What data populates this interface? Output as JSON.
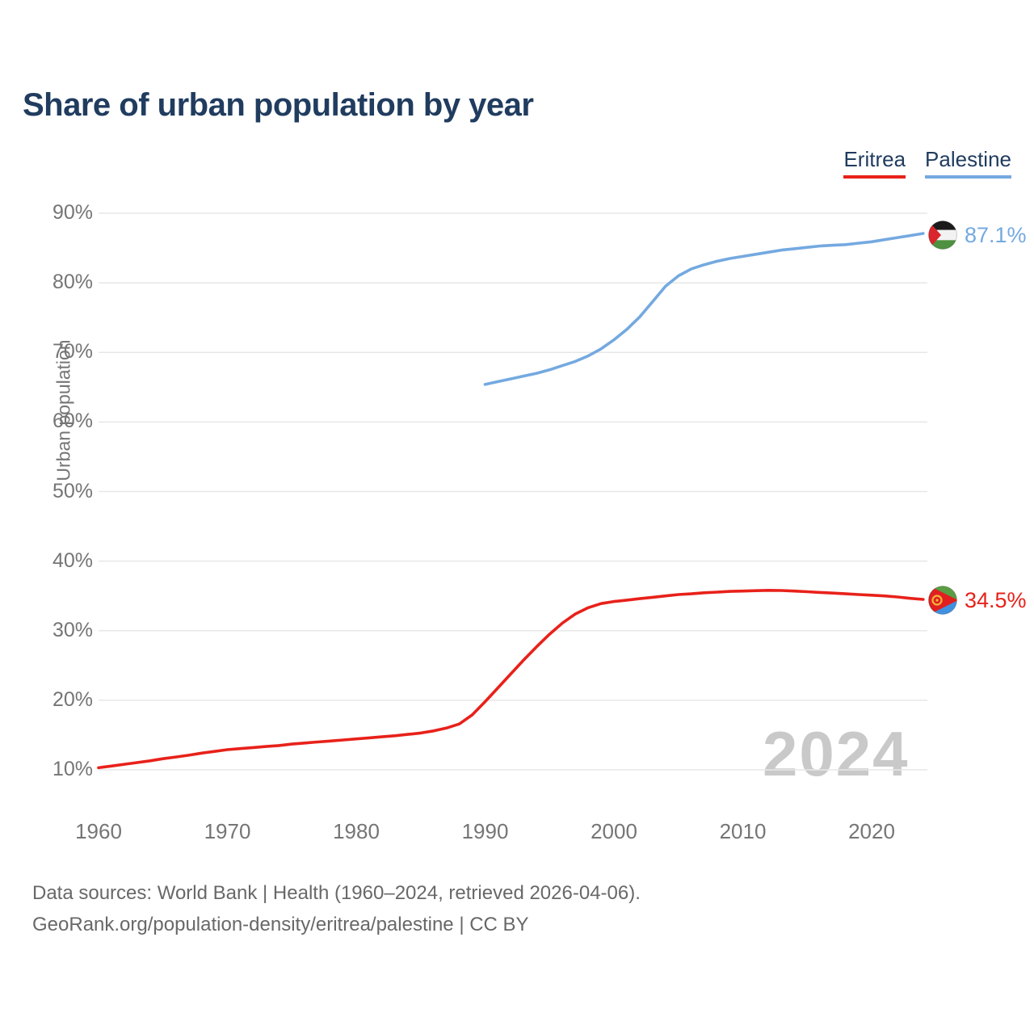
{
  "header": {
    "title": "Share of urban population by year"
  },
  "legend": {
    "items": [
      {
        "label": "Eritrea",
        "color": "#e8211a"
      },
      {
        "label": "Palestine",
        "color": "#74a9e0"
      }
    ]
  },
  "colors": {
    "navy": "#203c5f",
    "tick_gray": "#757575",
    "footer_gray": "#686868",
    "gridline": "#e7e7e7",
    "watermark_gray": "#c9c9c9",
    "eritrea_red": "#e8211a",
    "palestine_blue": "#74a9e0"
  },
  "chart_data": {
    "type": "line",
    "title": "Share of urban population by year",
    "xlabel": "",
    "ylabel": "Urban population",
    "x_range": [
      1960,
      2024
    ],
    "y_range": [
      10,
      90
    ],
    "x_ticks": [
      1960,
      1970,
      1980,
      1990,
      2000,
      2010,
      2020
    ],
    "y_ticks": [
      10,
      20,
      30,
      40,
      50,
      60,
      70,
      80,
      90
    ],
    "y_tick_suffix": "%",
    "grid": "horizontal-only",
    "legend_position": "top-right",
    "watermark": "2024",
    "series": [
      {
        "name": "Eritrea",
        "color": "#e8211a",
        "start_year": 1960,
        "end_year": 2024,
        "end_label": "34.5%",
        "end_value": 34.5,
        "flag": "eritrea",
        "values": [
          10.3,
          10.55,
          10.8,
          11.05,
          11.3,
          11.6,
          11.85,
          12.1,
          12.4,
          12.65,
          12.9,
          13.05,
          13.2,
          13.35,
          13.5,
          13.7,
          13.85,
          14.0,
          14.15,
          14.3,
          14.45,
          14.6,
          14.75,
          14.9,
          15.1,
          15.3,
          15.6,
          16.0,
          16.6,
          17.9,
          19.8,
          21.8,
          23.8,
          25.8,
          27.7,
          29.5,
          31.1,
          32.4,
          33.3,
          33.9,
          34.2,
          34.4,
          34.6,
          34.8,
          35.0,
          35.2,
          35.3,
          35.45,
          35.55,
          35.65,
          35.7,
          35.75,
          35.8,
          35.78,
          35.7,
          35.6,
          35.5,
          35.4,
          35.3,
          35.2,
          35.1,
          35.0,
          34.85,
          34.65,
          34.5
        ]
      },
      {
        "name": "Palestine",
        "color": "#74a9e0",
        "start_year": 1990,
        "end_year": 2024,
        "end_label": "87.1%",
        "end_value": 87.1,
        "flag": "palestine",
        "values": [
          65.4,
          65.8,
          66.2,
          66.6,
          67.0,
          67.5,
          68.1,
          68.7,
          69.5,
          70.5,
          71.8,
          73.3,
          75.1,
          77.3,
          79.5,
          81.0,
          82.0,
          82.6,
          83.1,
          83.5,
          83.8,
          84.1,
          84.4,
          84.7,
          84.9,
          85.1,
          85.3,
          85.4,
          85.5,
          85.7,
          85.9,
          86.2,
          86.5,
          86.8,
          87.1
        ]
      }
    ]
  },
  "footer": {
    "line1": "Data sources: World Bank | Health (1960–2024, retrieved 2026-04-06).",
    "line2": "GeoRank.org/population-density/eritrea/palestine | CC BY"
  }
}
